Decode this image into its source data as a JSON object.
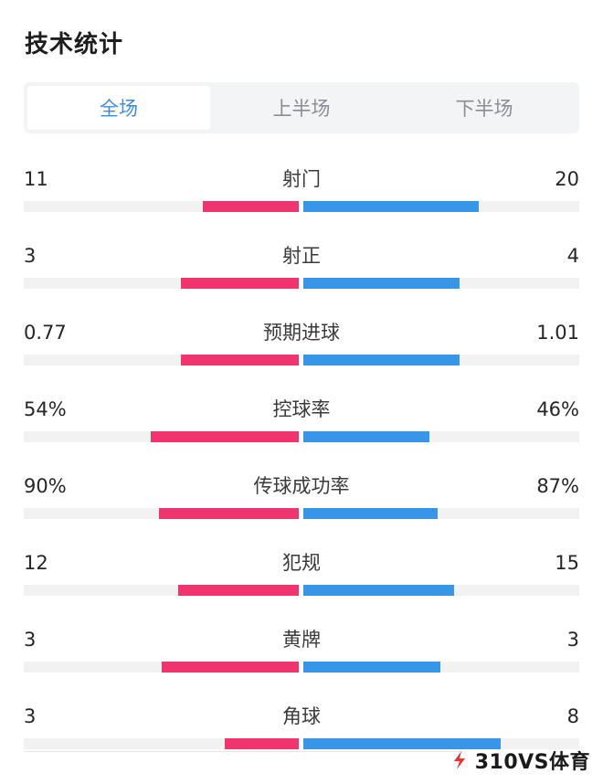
{
  "header": {
    "title": "技术统计"
  },
  "tabs": [
    {
      "label": "全场",
      "active": true
    },
    {
      "label": "上半场",
      "active": false
    },
    {
      "label": "下半场",
      "active": false
    }
  ],
  "colors": {
    "home": "#f0356e",
    "away": "#3796e8",
    "accent": "#3a8de0"
  },
  "stats": [
    {
      "label": "射门",
      "home": "11",
      "away": "20",
      "home_fraction": 0.35,
      "away_fraction": 0.64
    },
    {
      "label": "射正",
      "home": "3",
      "away": "4",
      "home_fraction": 0.43,
      "away_fraction": 0.57
    },
    {
      "label": "预期进球",
      "home": "0.77",
      "away": "1.01",
      "home_fraction": 0.43,
      "away_fraction": 0.57
    },
    {
      "label": "控球率",
      "home": "54%",
      "away": "46%",
      "home_fraction": 0.54,
      "away_fraction": 0.46
    },
    {
      "label": "传球成功率",
      "home": "90%",
      "away": "87%",
      "home_fraction": 0.51,
      "away_fraction": 0.49
    },
    {
      "label": "犯规",
      "home": "12",
      "away": "15",
      "home_fraction": 0.44,
      "away_fraction": 0.55
    },
    {
      "label": "黄牌",
      "home": "3",
      "away": "3",
      "home_fraction": 0.5,
      "away_fraction": 0.5
    },
    {
      "label": "角球",
      "home": "3",
      "away": "8",
      "home_fraction": 0.27,
      "away_fraction": 0.72
    }
  ],
  "brand": {
    "text": "310VS体育",
    "icon": "brand-logo-icon"
  }
}
